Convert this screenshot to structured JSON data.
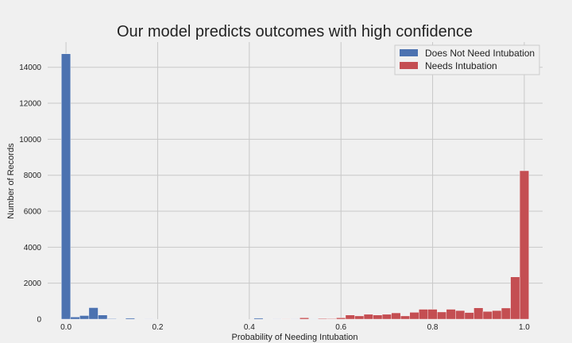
{
  "chart_data": {
    "type": "bar",
    "title": "Our model predicts outcomes with high confidence",
    "xlabel": "Probability of Needing Intubation",
    "ylabel": "Number of Records",
    "xlim": [
      -0.04,
      1.04
    ],
    "ylim": [
      0,
      15400
    ],
    "xticks": [
      0.0,
      0.2,
      0.4,
      0.6,
      0.8,
      1.0
    ],
    "xtick_labels": [
      "0.0",
      "0.2",
      "0.4",
      "0.6",
      "0.8",
      "1.0"
    ],
    "yticks": [
      0,
      2000,
      4000,
      6000,
      8000,
      10000,
      12000,
      14000
    ],
    "ytick_labels": [
      "0",
      "2000",
      "4000",
      "6000",
      "8000",
      "10000",
      "12000",
      "14000"
    ],
    "grid": true,
    "legend_position": "top-right",
    "bin_width": 0.02,
    "series": [
      {
        "name": "Does Not Need Intubation",
        "color": "#4c72b0",
        "bins": [
          {
            "x": 0.0,
            "value": 14750
          },
          {
            "x": 0.02,
            "value": 120
          },
          {
            "x": 0.04,
            "value": 200
          },
          {
            "x": 0.06,
            "value": 640
          },
          {
            "x": 0.08,
            "value": 230
          },
          {
            "x": 0.1,
            "value": 30
          },
          {
            "x": 0.14,
            "value": 60
          },
          {
            "x": 0.18,
            "value": 20
          },
          {
            "x": 0.42,
            "value": 60
          },
          {
            "x": 0.46,
            "value": 20
          },
          {
            "x": 0.5,
            "value": 20
          },
          {
            "x": 0.54,
            "value": 15
          }
        ]
      },
      {
        "name": "Needs Intubation",
        "color": "#c44e52",
        "bins": [
          {
            "x": 0.48,
            "value": 20
          },
          {
            "x": 0.52,
            "value": 80
          },
          {
            "x": 0.56,
            "value": 40
          },
          {
            "x": 0.58,
            "value": 30
          },
          {
            "x": 0.6,
            "value": 80
          },
          {
            "x": 0.62,
            "value": 230
          },
          {
            "x": 0.64,
            "value": 180
          },
          {
            "x": 0.66,
            "value": 270
          },
          {
            "x": 0.68,
            "value": 230
          },
          {
            "x": 0.7,
            "value": 270
          },
          {
            "x": 0.72,
            "value": 350
          },
          {
            "x": 0.74,
            "value": 180
          },
          {
            "x": 0.76,
            "value": 380
          },
          {
            "x": 0.78,
            "value": 550
          },
          {
            "x": 0.8,
            "value": 550
          },
          {
            "x": 0.82,
            "value": 400
          },
          {
            "x": 0.84,
            "value": 550
          },
          {
            "x": 0.86,
            "value": 480
          },
          {
            "x": 0.88,
            "value": 370
          },
          {
            "x": 0.9,
            "value": 630
          },
          {
            "x": 0.92,
            "value": 430
          },
          {
            "x": 0.94,
            "value": 480
          },
          {
            "x": 0.96,
            "value": 620
          },
          {
            "x": 0.98,
            "value": 2350
          },
          {
            "x": 1.0,
            "value": 8250
          }
        ]
      }
    ]
  }
}
